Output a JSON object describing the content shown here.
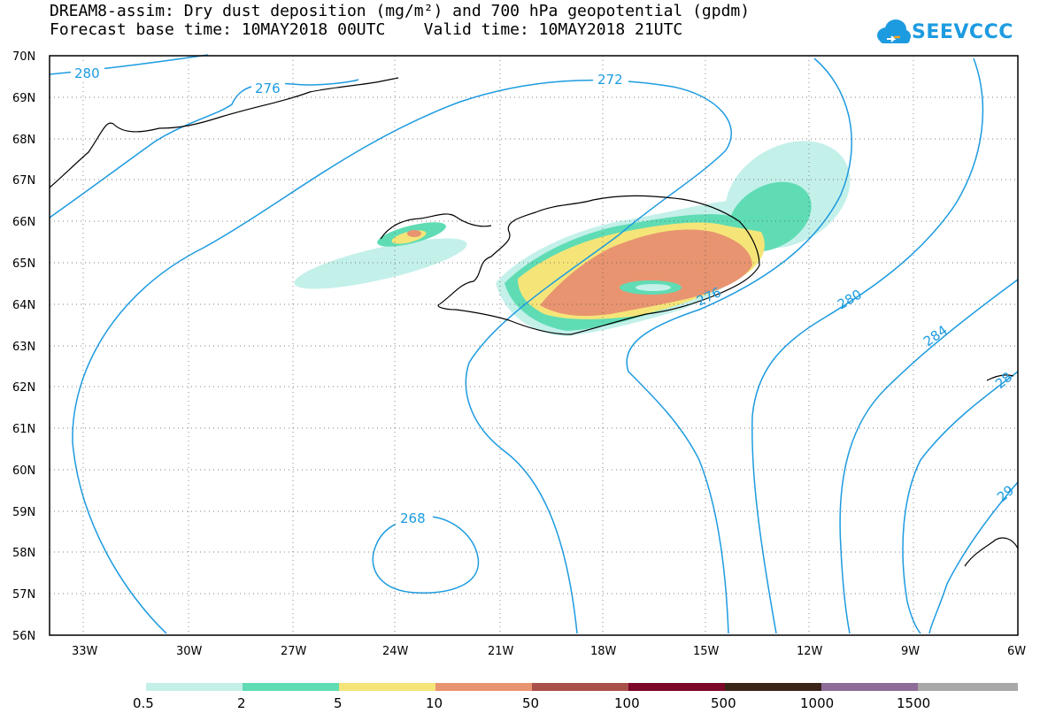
{
  "title": {
    "line1": "DREAM8-assim: Dry dust deposition (mg/m²) and 700 hPa geopotential (gpdm)",
    "line2": "Forecast base time: 10MAY2018 00UTC    Valid time: 10MAY2018 21UTC"
  },
  "logo": {
    "text": "SEEVCCC",
    "icon": "cloud-logo-icon"
  },
  "lat_labels": [
    "70N",
    "69N",
    "68N",
    "67N",
    "66N",
    "65N",
    "64N",
    "63N",
    "62N",
    "61N",
    "60N",
    "59N",
    "58N",
    "57N",
    "56N"
  ],
  "lon_labels": [
    "33W",
    "30W",
    "27W",
    "24W",
    "21W",
    "18W",
    "15W",
    "12W",
    "9W",
    "6W"
  ],
  "contour_labels": [
    "280",
    "276",
    "272",
    "276",
    "280",
    "284",
    "268",
    "28",
    "29"
  ],
  "legend": {
    "colors": [
      "#c4f0ea",
      "#5fdcb4",
      "#f5e579",
      "#e89470",
      "#a9504a",
      "#7c0728",
      "#3b2418",
      "#8e6c98",
      "#a8a8a8"
    ],
    "labels": [
      "0.5",
      "2",
      "5",
      "10",
      "50",
      "100",
      "500",
      "1000",
      "1500"
    ]
  },
  "colors": {
    "contour": "#1d9be0",
    "coast": "#000000"
  }
}
